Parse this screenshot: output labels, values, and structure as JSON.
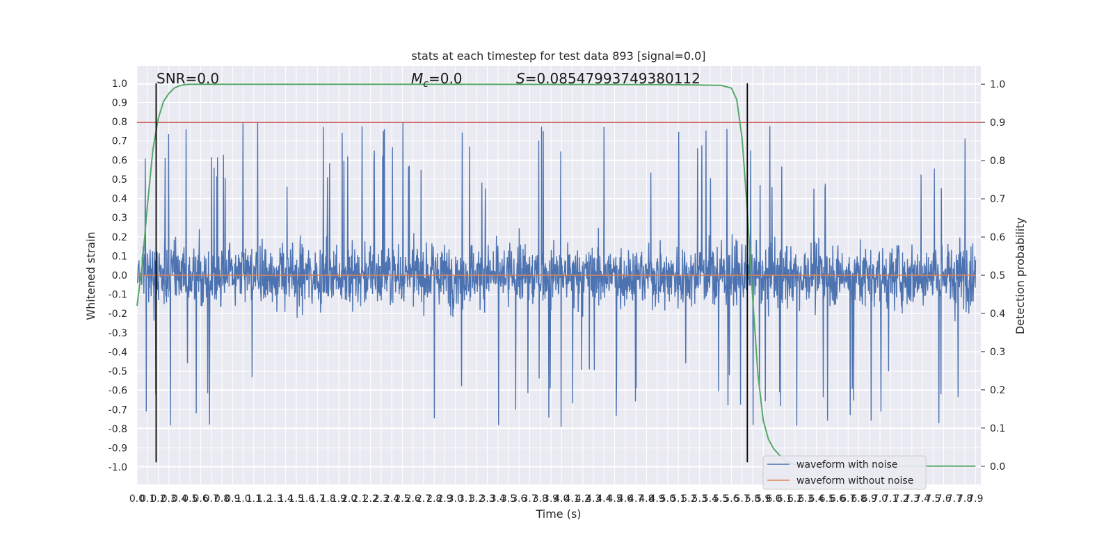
{
  "chart_data": {
    "type": "line",
    "title": "stats at each timestep for test data 893 [signal=0.0]",
    "xlabel": "Time (s)",
    "ylabel": "Whitened strain",
    "y2label": "Detection probability",
    "xlim": [
      0.0,
      7.95
    ],
    "ylim": [
      -1.09,
      1.09
    ],
    "y2lim": [
      -0.0476,
      1.0476
    ],
    "x_ticks": [
      "0.0",
      "0.1",
      "0.2",
      "0.3",
      "0.4",
      "0.5",
      "0.6",
      "0.7",
      "0.8",
      "0.9",
      "1.0",
      "1.1",
      "1.2",
      "1.3",
      "1.4",
      "1.5",
      "1.6",
      "1.7",
      "1.8",
      "1.9",
      "2.0",
      "2.1",
      "2.2",
      "2.3",
      "2.4",
      "2.5",
      "2.6",
      "2.7",
      "2.8",
      "2.9",
      "3.0",
      "3.1",
      "3.2",
      "3.3",
      "3.4",
      "3.5",
      "3.6",
      "3.7",
      "3.8",
      "3.9",
      "4.0",
      "4.1",
      "4.2",
      "4.3",
      "4.4",
      "4.5",
      "4.6",
      "4.7",
      "4.8",
      "4.9",
      "5.0",
      "5.1",
      "5.2",
      "5.3",
      "5.4",
      "5.5",
      "5.6",
      "5.7",
      "5.8",
      "5.9",
      "6.0",
      "6.1",
      "6.2",
      "6.3",
      "6.4",
      "6.5",
      "6.6",
      "6.7",
      "6.8",
      "6.9",
      "7.0",
      "7.1",
      "7.2",
      "7.3",
      "7.4",
      "7.5",
      "7.6",
      "7.7",
      "7.8",
      "7.9"
    ],
    "y_ticks": [
      "1.0",
      "0.9",
      "0.8",
      "0.7",
      "0.6",
      "0.5",
      "0.4",
      "0.3",
      "0.2",
      "0.1",
      "0.0",
      "-0.1",
      "-0.2",
      "-0.3",
      "-0.4",
      "-0.5",
      "-0.6",
      "-0.7",
      "-0.8",
      "-0.9",
      "-1.0"
    ],
    "y2_ticks": [
      "1.0",
      "0.9",
      "0.8",
      "0.7",
      "0.6",
      "0.5",
      "0.4",
      "0.3",
      "0.2",
      "0.1",
      "0.0"
    ],
    "annotations": {
      "snr": "SNR=0.0",
      "mc_symbol": "M",
      "mc_sub": "c",
      "mc_value": "=0.0",
      "s_symbol": "S",
      "s_value": "=0.08547993749380112"
    },
    "legend": {
      "placement": "lower right",
      "entries": [
        "waveform with noise",
        "waveform without noise"
      ]
    },
    "series": [
      {
        "name": "waveform with noise",
        "color": "#4c72b0",
        "kind": "noise",
        "typical_amplitude": 0.38,
        "peak_amplitude": 1.0
      },
      {
        "name": "waveform without noise",
        "color": "#dd8452",
        "kind": "constant",
        "value": 0.0
      }
    ],
    "detection_probability": {
      "color": "#55a868",
      "x": [
        0.0,
        0.05,
        0.1,
        0.15,
        0.2,
        0.25,
        0.3,
        0.35,
        0.4,
        0.45,
        0.5,
        0.6,
        1.0,
        3.0,
        5.0,
        5.5,
        5.6,
        5.65,
        5.7,
        5.75,
        5.8,
        5.85,
        5.9,
        5.95,
        6.0,
        6.05,
        6.1,
        6.15,
        6.2,
        6.25,
        6.3,
        6.4,
        6.6,
        7.0,
        7.5,
        7.9
      ],
      "y": [
        0.42,
        0.53,
        0.69,
        0.83,
        0.91,
        0.955,
        0.976,
        0.99,
        0.996,
        0.999,
        1.0,
        1.0,
        1.0,
        1.0,
        0.999,
        0.997,
        0.99,
        0.96,
        0.86,
        0.67,
        0.44,
        0.24,
        0.12,
        0.07,
        0.045,
        0.03,
        0.015,
        0.008,
        0.004,
        0.002,
        0.001,
        0.0,
        0.0,
        0.0,
        0.0,
        0.0
      ]
    },
    "threshold": {
      "axis": "y2",
      "value": 0.9,
      "color": "#c44e52"
    },
    "vlines": [
      {
        "x": 0.18,
        "ymin": -0.975,
        "ymax": 1.0
      },
      {
        "x": 5.75,
        "ymin": -0.975,
        "ymax": 1.0
      }
    ],
    "grid": true,
    "background": "#eaeaf2"
  }
}
